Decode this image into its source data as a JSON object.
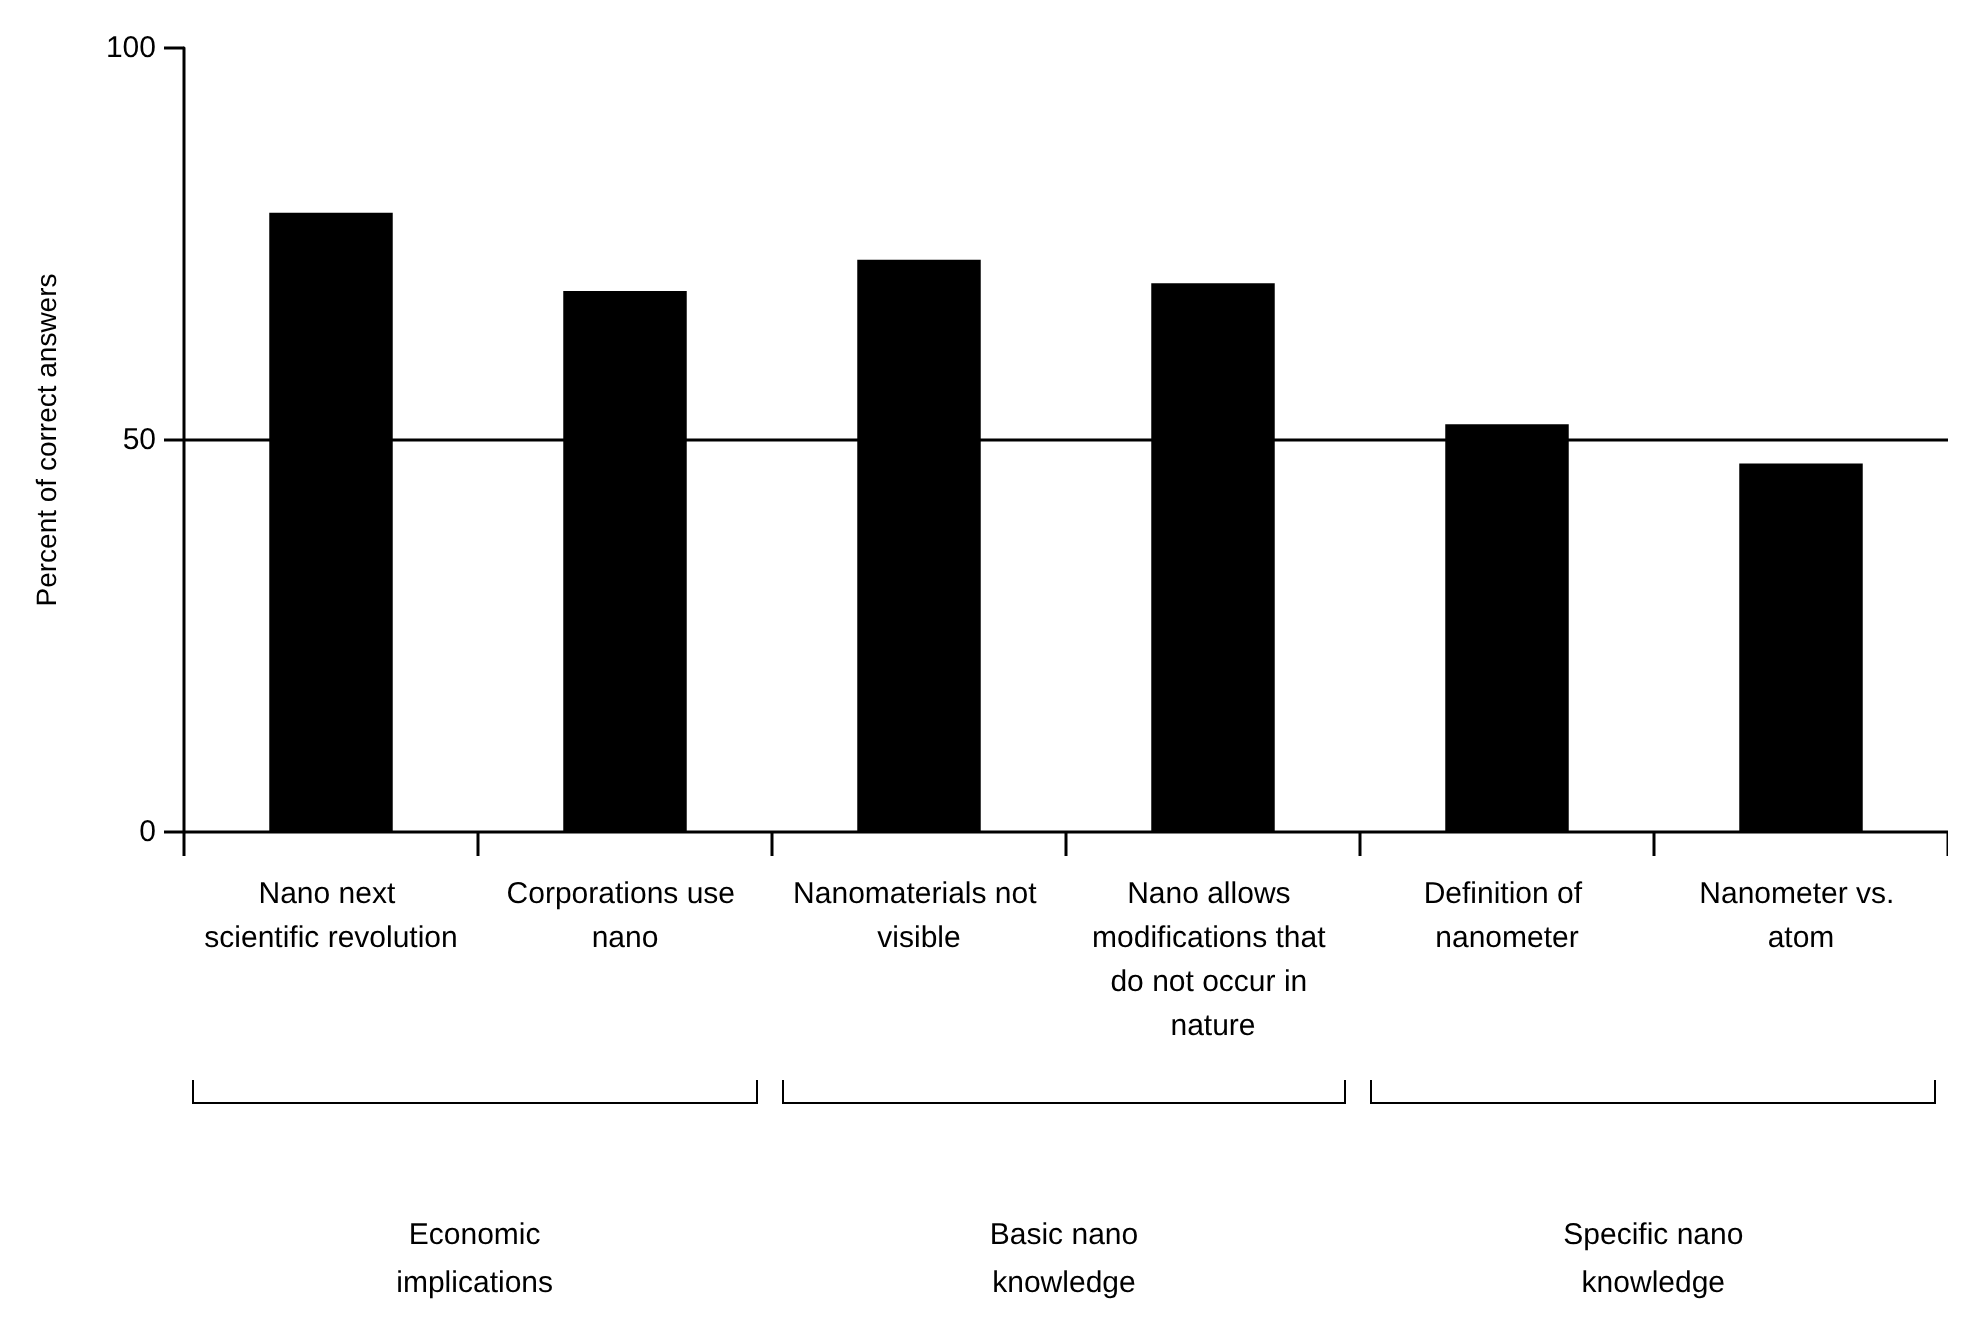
{
  "chart_data": {
    "type": "bar",
    "ylabel": "Percent of correct answers",
    "categories": [
      "Nano next scientific revolution",
      "Corporations use nano",
      "Nanomaterials not visible",
      "Nano allows modifications that do not occur in nature",
      "Definition of nanometer",
      "Nanometer vs. atom"
    ],
    "values": [
      79,
      69,
      73,
      70,
      52,
      47
    ],
    "color": "#000000",
    "ylim": [
      0,
      100
    ],
    "yticks": [
      0,
      50,
      100
    ],
    "grid": false,
    "ref_lines": [
      {
        "axis": "y",
        "value": 50,
        "color": "#000000"
      }
    ],
    "annotations": [
      "Economic implications",
      "Basic nano knowledge",
      "Specific nano knowledge"
    ]
  }
}
